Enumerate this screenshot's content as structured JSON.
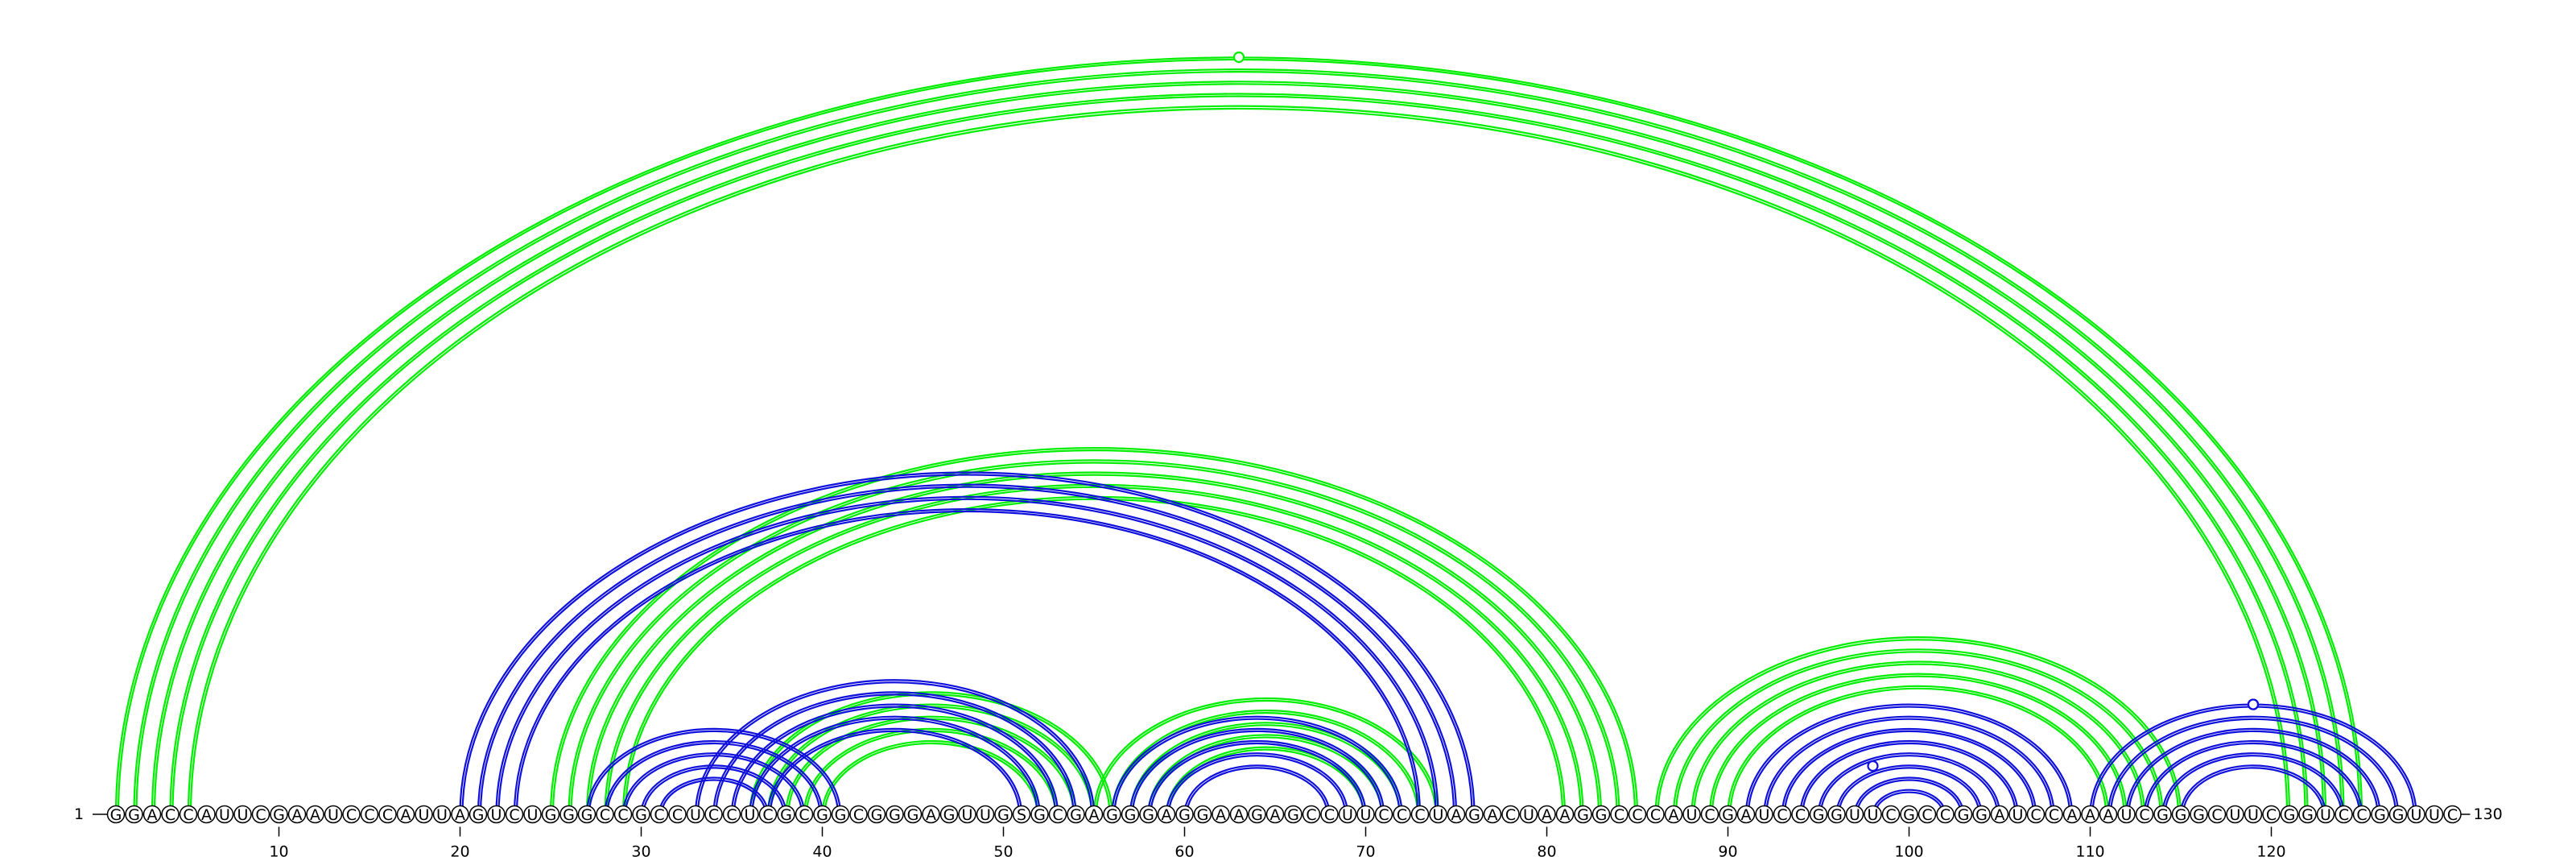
{
  "sequence": "GGACCAUUCGAAUCCCAUUAGUCUGGGCCGCCUCCUCGCGGCGGGAGUUGSGCGAGGGAGGAAGAGCCUUCCCUAGACUAAGGCCCAUCGAUCCGGUUCGCCGGAUCCAAAUCGGGCUUCGGUCCGGUUC",
  "start_label": "1",
  "end_label": "130",
  "ticks": [
    10,
    20,
    30,
    40,
    50,
    60,
    70,
    80,
    90,
    100,
    110,
    120
  ],
  "colors": {
    "green": "#00ee00",
    "blue": "#1010dd",
    "backbone": "#000000"
  },
  "structures": [
    {
      "color": "green",
      "pairs": [
        [
          1,
          125
        ],
        [
          2,
          124
        ],
        [
          3,
          123
        ],
        [
          4,
          122
        ],
        [
          5,
          121
        ],
        [
          25,
          85
        ],
        [
          26,
          84
        ],
        [
          27,
          83
        ],
        [
          28,
          82
        ],
        [
          29,
          81
        ],
        [
          36,
          56
        ],
        [
          37,
          55
        ],
        [
          38,
          54
        ],
        [
          39,
          53
        ],
        [
          40,
          52
        ],
        [
          55,
          74
        ],
        [
          56,
          73
        ],
        [
          57,
          72
        ],
        [
          58,
          71
        ],
        [
          59,
          70
        ],
        [
          86,
          115
        ],
        [
          87,
          114
        ],
        [
          88,
          113
        ],
        [
          89,
          112
        ],
        [
          90,
          111
        ]
      ],
      "pseudoknot_markers": [
        64
      ]
    },
    {
      "color": "blue",
      "pairs": [
        [
          20,
          76
        ],
        [
          21,
          75
        ],
        [
          22,
          74
        ],
        [
          23,
          73
        ],
        [
          27,
          41
        ],
        [
          28,
          40
        ],
        [
          29,
          39
        ],
        [
          30,
          38
        ],
        [
          31,
          37
        ],
        [
          33,
          55
        ],
        [
          34,
          54
        ],
        [
          35,
          53
        ],
        [
          36,
          52
        ],
        [
          37,
          51
        ],
        [
          56,
          72
        ],
        [
          57,
          71
        ],
        [
          58,
          70
        ],
        [
          59,
          69
        ],
        [
          60,
          68
        ],
        [
          91,
          109
        ],
        [
          92,
          108
        ],
        [
          93,
          107
        ],
        [
          94,
          106
        ],
        [
          95,
          105
        ],
        [
          96,
          104
        ],
        [
          97,
          103
        ],
        [
          98,
          102
        ],
        [
          110,
          128
        ],
        [
          111,
          127
        ],
        [
          112,
          126
        ],
        [
          113,
          125
        ],
        [
          114,
          124
        ],
        [
          115,
          123
        ]
      ],
      "pseudoknot_markers": [
        98,
        118,
        119,
        120
      ]
    }
  ]
}
